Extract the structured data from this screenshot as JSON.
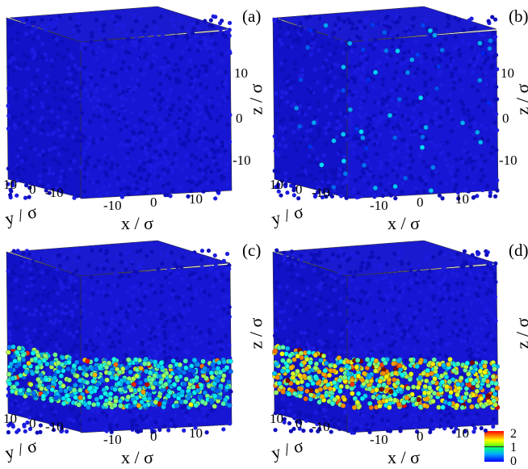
{
  "chart_data": {
    "type": "scatter",
    "description_kind": "3D particle snapshots colored by scalar",
    "axes": {
      "x_label": "x / σ",
      "y_label": "y / σ",
      "z_label": "z / σ"
    },
    "panels": [
      {
        "label": "(a)",
        "x_ticks": [
          "-10",
          "0",
          "10"
        ],
        "y_ticks": [
          "10",
          "0",
          "-10"
        ],
        "z_ticks": [
          "10",
          "0",
          "-10"
        ],
        "band_level": 0
      },
      {
        "label": "(b)",
        "x_ticks": [
          "-10",
          "0",
          "10"
        ],
        "y_ticks": [
          "10",
          "0",
          "-10"
        ],
        "z_ticks": [
          "10",
          "0",
          "-10"
        ],
        "band_level": 0.1
      },
      {
        "label": "(c)",
        "x_ticks": [
          "-10",
          "0",
          "10"
        ],
        "y_ticks": [
          "10",
          "0",
          "-10"
        ],
        "z_ticks": [
          "",
          ""
        ],
        "band_level": 0.8
      },
      {
        "label": "(d)",
        "x_ticks": [
          "-10",
          "0",
          "10"
        ],
        "y_ticks": [
          "10",
          "0",
          "-10"
        ],
        "z_ticks": [
          "",
          ""
        ],
        "band_level": 1.1
      }
    ],
    "colorbar": {
      "ticks": [
        "2",
        "1",
        "0"
      ],
      "range": [
        0,
        2
      ],
      "colormap": "jet"
    },
    "colors": {
      "base": "#1414d8",
      "low": "#0000ff",
      "high": "#ff0000"
    }
  }
}
